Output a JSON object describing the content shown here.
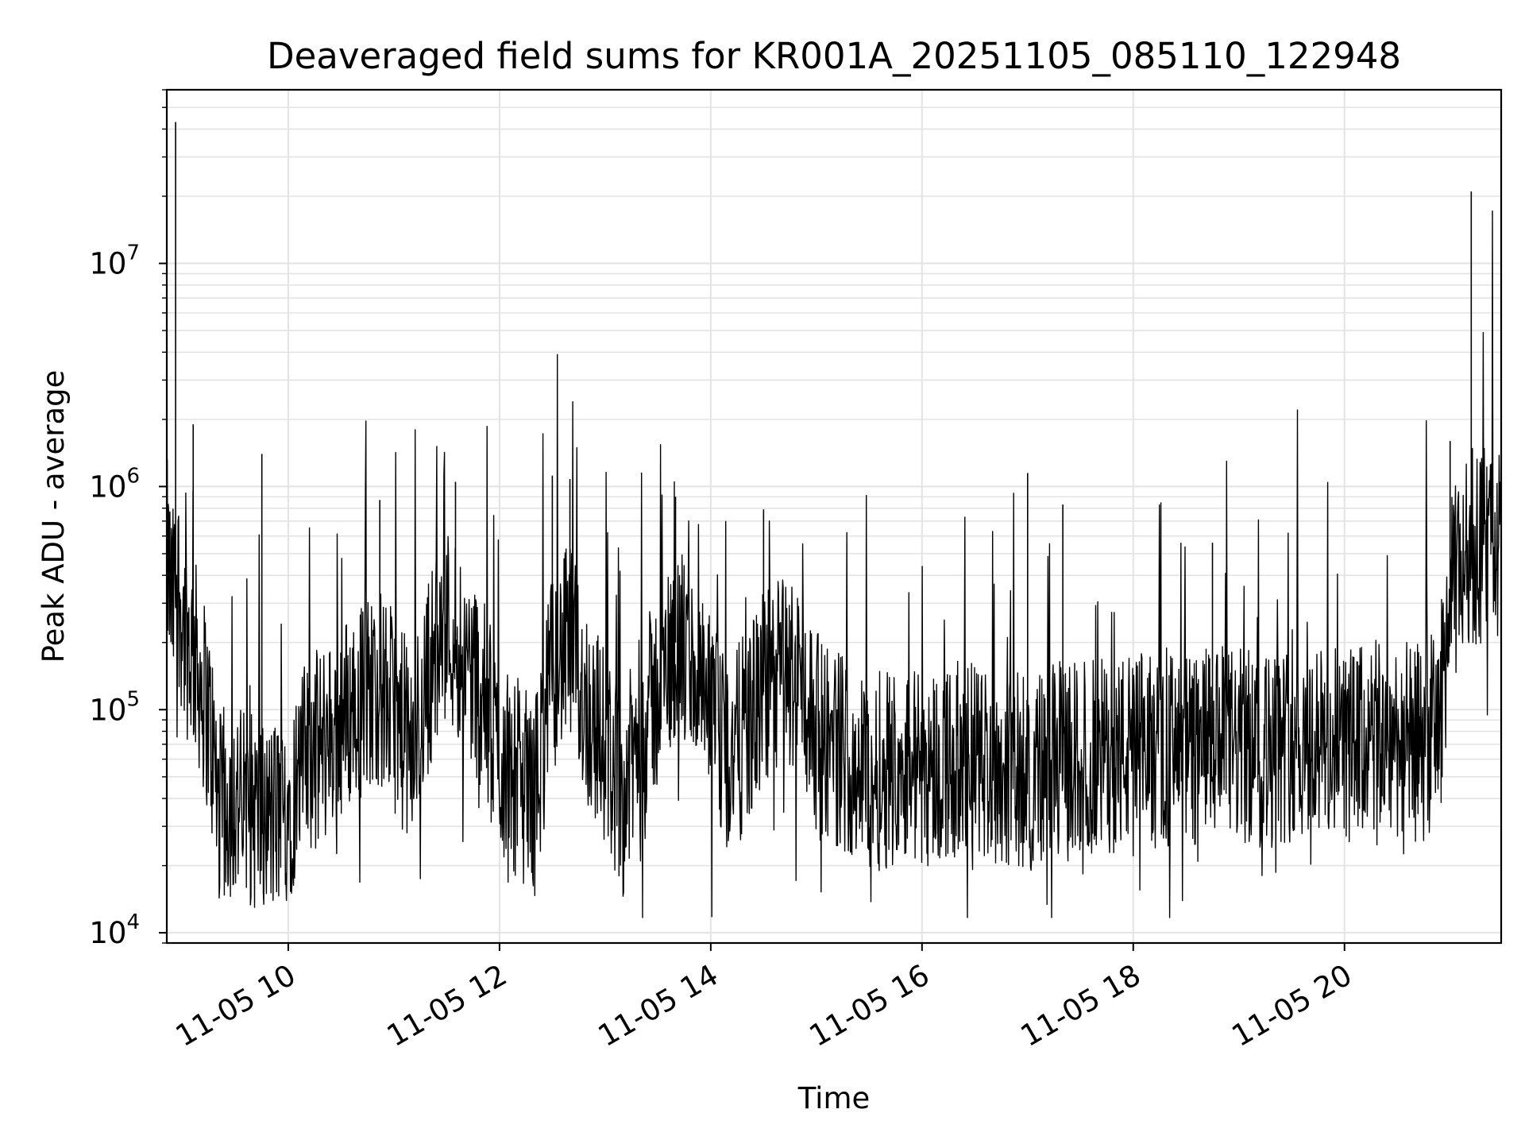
{
  "chart_data": {
    "type": "line",
    "title": "Deaveraged field sums for KR001A_20251105_085110_122948",
    "xlabel": "Time",
    "ylabel": "Peak ADU - average",
    "yscale": "log",
    "ylim": [
      9000,
      60000000
    ],
    "xlim": [
      "2025-11-05 08:51",
      "2025-11-05 21:29"
    ],
    "grid": true,
    "legend": "none",
    "line_color": "#000000",
    "grid_color": "#e3e3e3",
    "x_ticks": [
      {
        "value": "2025-11-05 10:00",
        "label": "11-05 10"
      },
      {
        "value": "2025-11-05 12:00",
        "label": "11-05 12"
      },
      {
        "value": "2025-11-05 14:00",
        "label": "11-05 14"
      },
      {
        "value": "2025-11-05 16:00",
        "label": "11-05 16"
      },
      {
        "value": "2025-11-05 18:00",
        "label": "11-05 18"
      },
      {
        "value": "2025-11-05 20:00",
        "label": "11-05 20"
      }
    ],
    "y_ticks": [
      {
        "value": 10000,
        "base": "10",
        "exp": "4"
      },
      {
        "value": 100000,
        "base": "10",
        "exp": "5"
      },
      {
        "value": 1000000,
        "base": "10",
        "exp": "6"
      },
      {
        "value": 10000000,
        "base": "10",
        "exp": "7"
      }
    ],
    "series": [
      {
        "x": [
          "2025-11-05 08:51",
          "2025-11-05 08:54",
          "2025-11-05 08:57",
          "2025-11-05 09:00",
          "2025-11-05 09:03",
          "2025-11-05 09:06",
          "2025-11-05 09:09",
          "2025-11-05 09:15",
          "2025-11-05 09:21",
          "2025-11-05 09:27",
          "2025-11-05 09:33",
          "2025-11-05 09:40",
          "2025-11-05 09:50",
          "2025-11-05 10:00",
          "2025-11-05 10:10",
          "2025-11-05 10:20",
          "2025-11-05 10:30",
          "2025-11-05 10:40",
          "2025-11-05 10:50",
          "2025-11-05 11:00",
          "2025-11-05 11:10",
          "2025-11-05 11:20",
          "2025-11-05 11:30",
          "2025-11-05 11:40",
          "2025-11-05 11:50",
          "2025-11-05 12:00",
          "2025-11-05 12:10",
          "2025-11-05 12:20",
          "2025-11-05 12:30",
          "2025-11-05 12:40",
          "2025-11-05 12:50",
          "2025-11-05 13:00",
          "2025-11-05 13:10",
          "2025-11-05 13:20",
          "2025-11-05 13:30",
          "2025-11-05 13:40",
          "2025-11-05 13:50",
          "2025-11-05 14:00",
          "2025-11-05 14:10",
          "2025-11-05 14:20",
          "2025-11-05 14:30",
          "2025-11-05 14:40",
          "2025-11-05 14:50",
          "2025-11-05 15:00",
          "2025-11-05 15:10",
          "2025-11-05 15:20",
          "2025-11-05 15:30",
          "2025-11-05 15:40",
          "2025-11-05 15:50",
          "2025-11-05 16:00",
          "2025-11-05 16:15",
          "2025-11-05 16:30",
          "2025-11-05 16:45",
          "2025-11-05 17:00",
          "2025-11-05 17:15",
          "2025-11-05 17:30",
          "2025-11-05 17:45",
          "2025-11-05 18:00",
          "2025-11-05 18:15",
          "2025-11-05 18:30",
          "2025-11-05 18:45",
          "2025-11-05 19:00",
          "2025-11-05 19:15",
          "2025-11-05 19:30",
          "2025-11-05 19:45",
          "2025-11-05 20:00",
          "2025-11-05 20:15",
          "2025-11-05 20:30",
          "2025-11-05 20:45",
          "2025-11-05 20:54",
          "2025-11-05 21:00",
          "2025-11-05 21:06",
          "2025-11-05 21:12",
          "2025-11-05 21:18",
          "2025-11-05 21:24",
          "2025-11-05 21:29"
        ],
        "y": [
          500000,
          280000,
          400000,
          250000,
          200000,
          180000,
          150000,
          90000,
          35000,
          40000,
          38000,
          35000,
          32000,
          38000,
          60000,
          70000,
          90000,
          110000,
          130000,
          100000,
          60000,
          150000,
          250000,
          180000,
          120000,
          60000,
          50000,
          40000,
          150000,
          200000,
          100000,
          70000,
          40000,
          80000,
          120000,
          200000,
          150000,
          90000,
          60000,
          80000,
          120000,
          150000,
          140000,
          80000,
          70000,
          60000,
          50000,
          55000,
          60000,
          55000,
          58000,
          60000,
          55000,
          52000,
          58000,
          60000,
          62000,
          65000,
          66000,
          64000,
          70000,
          68000,
          65000,
          72000,
          70000,
          68000,
          72000,
          75000,
          70000,
          90000,
          300000,
          450000,
          550000,
          550000,
          560000,
          550000
        ]
      }
    ],
    "spikes": [
      {
        "x": "2025-11-05 08:56",
        "y": 43000000
      },
      {
        "x": "2025-11-05 09:06",
        "y": 1900000
      },
      {
        "x": "2025-11-05 09:45",
        "y": 1400000
      },
      {
        "x": "2025-11-05 10:52",
        "y": 870000
      },
      {
        "x": "2025-11-05 11:35",
        "y": 1050000
      },
      {
        "x": "2025-11-05 12:30",
        "y": 1120000
      },
      {
        "x": "2025-11-05 12:40",
        "y": 1080000
      },
      {
        "x": "2025-11-05 13:40",
        "y": 900000
      },
      {
        "x": "2025-11-05 14:30",
        "y": 790000
      },
      {
        "x": "2025-11-05 17:00",
        "y": 1150000
      },
      {
        "x": "2025-11-05 17:20",
        "y": 830000
      },
      {
        "x": "2025-11-05 18:45",
        "y": 560000
      },
      {
        "x": "2025-11-05 21:00",
        "y": 1600000
      },
      {
        "x": "2025-11-05 21:12",
        "y": 21000000
      },
      {
        "x": "2025-11-05 21:24",
        "y": 920000
      }
    ]
  }
}
